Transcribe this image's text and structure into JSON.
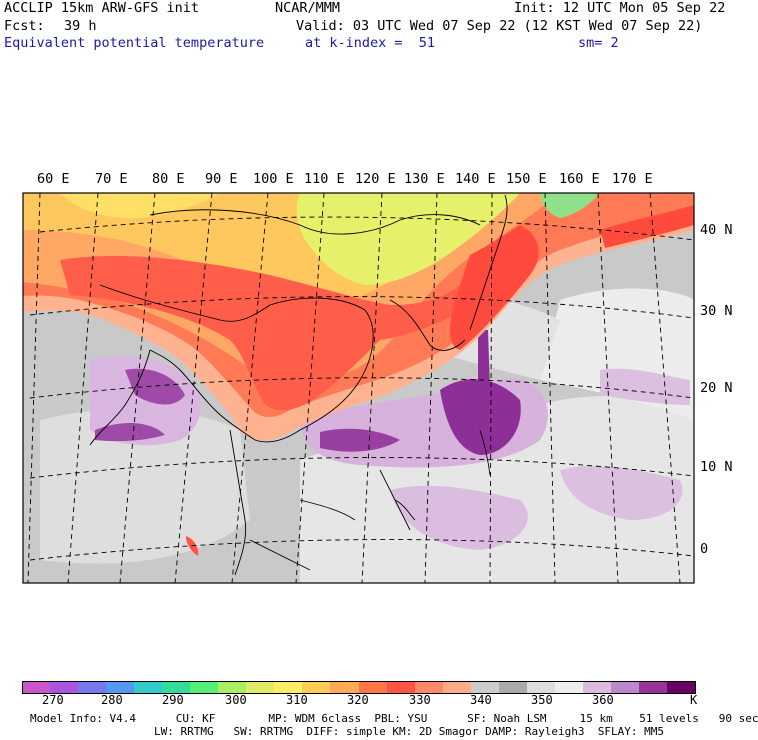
{
  "header": {
    "model_line": "ACCLIP 15km ARW-GFS init",
    "org": "NCAR/MMM",
    "init": "Init: 12 UTC Mon 05 Sep 22",
    "fcst_label": "Fcst:",
    "fcst_value": "39 h",
    "valid": "Valid: 03 UTC Wed 07 Sep 22 (12 KST Wed 07 Sep 22)",
    "field_name": "Equivalent potential temperature",
    "level": "at k-index =  51",
    "smoothing": "sm= 2"
  },
  "map": {
    "lon_labels": [
      "60 E",
      "70 E",
      "80 E",
      "90 E",
      "100 E",
      "110 E",
      "120 E",
      "130 E",
      "140 E",
      "150 E",
      "160 E",
      "170 E"
    ],
    "lat_labels": [
      "40 N",
      "30 N",
      "20 N",
      "10 N",
      "0"
    ]
  },
  "colorbar": {
    "unit": "K",
    "labels": [
      "270",
      "280",
      "290",
      "300",
      "310",
      "320",
      "330",
      "340",
      "350",
      "360"
    ],
    "colors": [
      "#cc55cc",
      "#aa55dd",
      "#7777ee",
      "#5599ee",
      "#33cccc",
      "#33dd99",
      "#55ee77",
      "#aaee66",
      "#ddee66",
      "#ffee66",
      "#ffcc55",
      "#ffaa55",
      "#ff7744",
      "#ff5544",
      "#ff8866",
      "#ffaa88",
      "#cccccc",
      "#aaaaaa",
      "#dddddd",
      "#eeeeee",
      "#ddbbdd",
      "#bb88cc",
      "#993399",
      "#660066"
    ]
  },
  "footer": {
    "line1": "Model Info: V4.4      CU: KF        MP: WDM 6class  PBL: YSU      SF: Noah LSM     15 km    51 levels   90 sec",
    "line2": "LW: RRTMG   SW: RRTMG  DIFF: simple KM: 2D Smagor DAMP: Rayleigh3  SFLAY: MM5"
  }
}
